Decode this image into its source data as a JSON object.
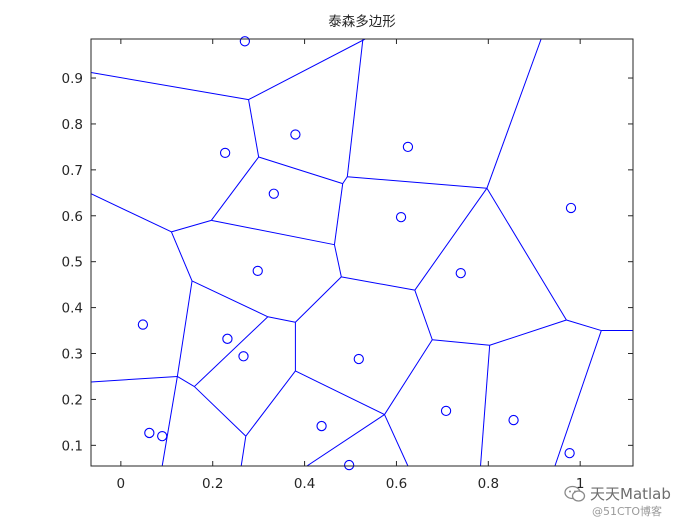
{
  "chart_data": {
    "type": "scatter",
    "title": "泰森多边形",
    "xlabel": "",
    "ylabel": "",
    "xlim": [
      -0.065,
      1.115
    ],
    "ylim": [
      0.055,
      0.985
    ],
    "xticks": [
      0,
      0.2,
      0.4,
      0.6,
      0.8,
      1
    ],
    "xtick_labels": [
      "0",
      "0.2",
      "0.4",
      "0.6",
      "0.8",
      "1"
    ],
    "yticks": [
      0.1,
      0.2,
      0.3,
      0.4,
      0.5,
      0.6,
      0.7,
      0.8,
      0.9
    ],
    "ytick_labels": [
      "0.1",
      "0.2",
      "0.3",
      "0.4",
      "0.5",
      "0.6",
      "0.7",
      "0.8",
      "0.9"
    ],
    "grid": false,
    "colors": {
      "points": "#0000ff",
      "edges": "#0000ff",
      "axes": "#262626"
    },
    "points": [
      {
        "x": 0.27,
        "y": 0.98
      },
      {
        "x": 0.38,
        "y": 0.777
      },
      {
        "x": 0.227,
        "y": 0.737
      },
      {
        "x": 0.625,
        "y": 0.75
      },
      {
        "x": 0.333,
        "y": 0.648
      },
      {
        "x": 0.61,
        "y": 0.597
      },
      {
        "x": 0.98,
        "y": 0.617
      },
      {
        "x": 0.298,
        "y": 0.48
      },
      {
        "x": 0.74,
        "y": 0.475
      },
      {
        "x": 0.048,
        "y": 0.363
      },
      {
        "x": 0.232,
        "y": 0.332
      },
      {
        "x": 0.267,
        "y": 0.294
      },
      {
        "x": 0.518,
        "y": 0.288
      },
      {
        "x": 0.708,
        "y": 0.175
      },
      {
        "x": 0.855,
        "y": 0.155
      },
      {
        "x": 0.437,
        "y": 0.142
      },
      {
        "x": 0.062,
        "y": 0.127
      },
      {
        "x": 0.09,
        "y": 0.12
      },
      {
        "x": 0.497,
        "y": 0.057
      },
      {
        "x": 0.977,
        "y": 0.083
      }
    ],
    "edges": [
      [
        [
          -0.065,
          0.912
        ],
        [
          0.278,
          0.853
        ]
      ],
      [
        [
          0.278,
          0.853
        ],
        [
          0.532,
          0.985
        ]
      ],
      [
        [
          0.278,
          0.853
        ],
        [
          0.3,
          0.728
        ]
      ],
      [
        [
          0.3,
          0.728
        ],
        [
          0.483,
          0.67
        ]
      ],
      [
        [
          0.3,
          0.728
        ],
        [
          0.197,
          0.59
        ]
      ],
      [
        [
          0.483,
          0.67
        ],
        [
          0.493,
          0.685
        ]
      ],
      [
        [
          0.493,
          0.685
        ],
        [
          0.527,
          0.985
        ]
      ],
      [
        [
          0.493,
          0.685
        ],
        [
          0.797,
          0.66
        ]
      ],
      [
        [
          0.797,
          0.66
        ],
        [
          0.915,
          0.985
        ]
      ],
      [
        [
          0.797,
          0.66
        ],
        [
          0.97,
          0.373
        ]
      ],
      [
        [
          0.797,
          0.66
        ],
        [
          0.64,
          0.438
        ]
      ],
      [
        [
          0.483,
          0.67
        ],
        [
          0.465,
          0.537
        ]
      ],
      [
        [
          0.465,
          0.537
        ],
        [
          0.197,
          0.59
        ]
      ],
      [
        [
          0.197,
          0.59
        ],
        [
          0.11,
          0.565
        ]
      ],
      [
        [
          0.11,
          0.565
        ],
        [
          -0.065,
          0.648
        ]
      ],
      [
        [
          0.11,
          0.565
        ],
        [
          0.155,
          0.458
        ]
      ],
      [
        [
          0.155,
          0.458
        ],
        [
          0.32,
          0.38
        ]
      ],
      [
        [
          0.155,
          0.458
        ],
        [
          0.123,
          0.25
        ]
      ],
      [
        [
          0.465,
          0.537
        ],
        [
          0.48,
          0.467
        ]
      ],
      [
        [
          0.48,
          0.467
        ],
        [
          0.38,
          0.368
        ]
      ],
      [
        [
          0.48,
          0.467
        ],
        [
          0.64,
          0.438
        ]
      ],
      [
        [
          0.64,
          0.438
        ],
        [
          0.678,
          0.33
        ]
      ],
      [
        [
          0.678,
          0.33
        ],
        [
          0.803,
          0.318
        ]
      ],
      [
        [
          0.803,
          0.318
        ],
        [
          0.97,
          0.373
        ]
      ],
      [
        [
          0.97,
          0.373
        ],
        [
          1.046,
          0.35
        ]
      ],
      [
        [
          1.046,
          0.35
        ],
        [
          1.115,
          0.35
        ]
      ],
      [
        [
          1.046,
          0.35
        ],
        [
          0.945,
          0.055
        ]
      ],
      [
        [
          0.803,
          0.318
        ],
        [
          0.783,
          0.055
        ]
      ],
      [
        [
          0.678,
          0.33
        ],
        [
          0.574,
          0.167
        ]
      ],
      [
        [
          0.574,
          0.167
        ],
        [
          0.38,
          0.262
        ]
      ],
      [
        [
          0.574,
          0.167
        ],
        [
          0.625,
          0.055
        ]
      ],
      [
        [
          0.574,
          0.167
        ],
        [
          0.405,
          0.055
        ]
      ],
      [
        [
          0.32,
          0.38
        ],
        [
          0.38,
          0.368
        ]
      ],
      [
        [
          0.38,
          0.368
        ],
        [
          0.38,
          0.262
        ]
      ],
      [
        [
          0.38,
          0.262
        ],
        [
          0.272,
          0.12
        ]
      ],
      [
        [
          0.272,
          0.12
        ],
        [
          0.262,
          0.055
        ]
      ],
      [
        [
          0.272,
          0.12
        ],
        [
          0.16,
          0.228
        ]
      ],
      [
        [
          0.32,
          0.38
        ],
        [
          0.16,
          0.228
        ]
      ],
      [
        [
          0.16,
          0.228
        ],
        [
          0.123,
          0.25
        ]
      ],
      [
        [
          0.123,
          0.25
        ],
        [
          -0.065,
          0.238
        ]
      ],
      [
        [
          0.123,
          0.25
        ],
        [
          0.09,
          0.055
        ]
      ]
    ]
  },
  "watermark": {
    "main": "天天Matlab",
    "sub": "@51CTO博客"
  }
}
